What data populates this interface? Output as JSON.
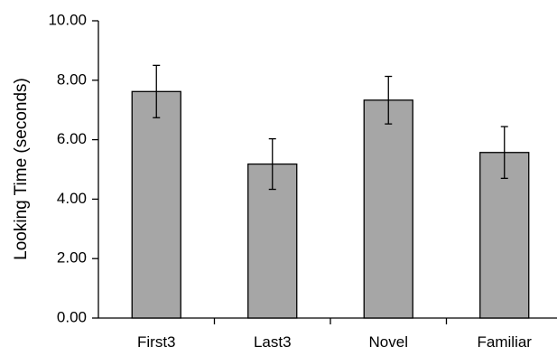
{
  "chart_data": {
    "type": "bar",
    "title": "",
    "xlabel": "",
    "ylabel": "Looking Time (seconds)",
    "ylim": [
      0,
      10
    ],
    "yticks": [
      "0.00",
      "2.00",
      "4.00",
      "6.00",
      "8.00",
      "10.00"
    ],
    "categories": [
      "First3",
      "Last3",
      "Novel",
      "Familiar"
    ],
    "values": [
      7.62,
      5.18,
      7.33,
      5.57
    ],
    "error_upper": [
      8.5,
      6.03,
      8.13,
      6.44
    ],
    "error_lower": [
      6.74,
      4.33,
      6.53,
      4.7
    ],
    "bar_color": "#a6a6a6",
    "grid": false,
    "legend": "none"
  }
}
